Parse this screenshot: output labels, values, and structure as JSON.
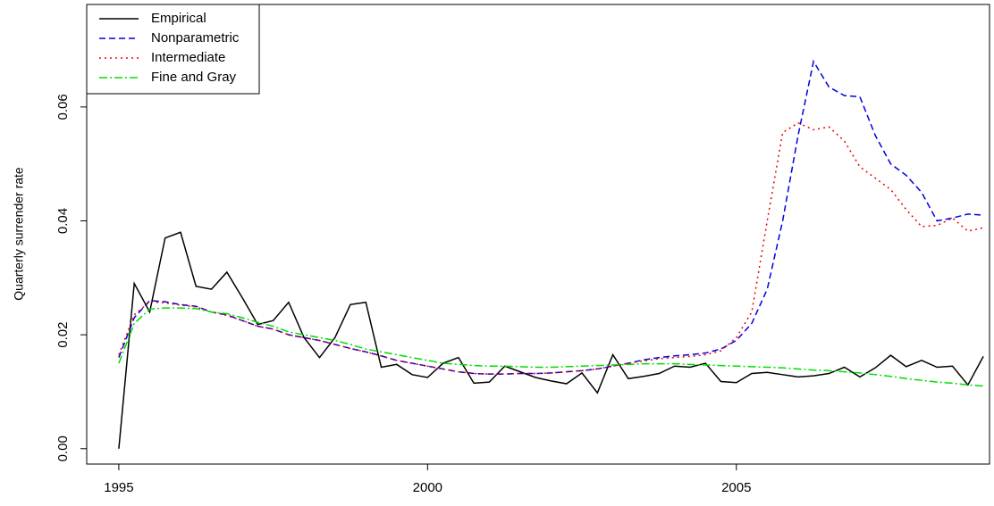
{
  "chart_data": {
    "type": "line",
    "ylabel": "Quarterly surrender rate",
    "x": [
      1995,
      1995.25,
      1995.5,
      1995.75,
      1996,
      1996.25,
      1996.5,
      1996.75,
      1997,
      1997.25,
      1997.5,
      1997.75,
      1998,
      1998.25,
      1998.5,
      1998.75,
      1999,
      1999.25,
      1999.5,
      1999.75,
      2000,
      2000.25,
      2000.5,
      2000.75,
      2001,
      2001.25,
      2001.5,
      2001.75,
      2002,
      2002.25,
      2002.5,
      2002.75,
      2003,
      2003.25,
      2003.5,
      2003.75,
      2004,
      2004.25,
      2004.5,
      2004.75,
      2005,
      2005.25,
      2005.5,
      2005.75,
      2006,
      2006.25,
      2006.5,
      2006.75,
      2007,
      2007.25,
      2007.5,
      2007.75,
      2008,
      2008.25,
      2008.5,
      2008.75,
      2009
    ],
    "series": [
      {
        "name": "Empirical",
        "color": "#000000",
        "dash": "none",
        "values": [
          0.0,
          0.029,
          0.024,
          0.037,
          0.038,
          0.0285,
          0.028,
          0.031,
          0.0265,
          0.0218,
          0.0225,
          0.0257,
          0.0195,
          0.016,
          0.0195,
          0.0253,
          0.0257,
          0.0143,
          0.0148,
          0.013,
          0.0125,
          0.015,
          0.016,
          0.0115,
          0.0117,
          0.0145,
          0.0135,
          0.0125,
          0.0119,
          0.0114,
          0.0133,
          0.0098,
          0.0165,
          0.0123,
          0.0127,
          0.0132,
          0.0145,
          0.0143,
          0.015,
          0.0118,
          0.0116,
          0.0132,
          0.0134,
          0.013,
          0.0126,
          0.0128,
          0.0132,
          0.0143,
          0.0126,
          0.0142,
          0.0164,
          0.0144,
          0.0155,
          0.0143,
          0.0145,
          0.0112,
          0.0162
        ]
      },
      {
        "name": "Nonparametric",
        "color": "#0000dd",
        "dash": "7,4",
        "values": [
          0.016,
          0.023,
          0.026,
          0.0258,
          0.0253,
          0.025,
          0.024,
          0.0235,
          0.0225,
          0.0215,
          0.021,
          0.02,
          0.0195,
          0.019,
          0.0183,
          0.0176,
          0.017,
          0.0163,
          0.0155,
          0.015,
          0.0145,
          0.014,
          0.0135,
          0.0132,
          0.0131,
          0.0131,
          0.0132,
          0.0132,
          0.0133,
          0.0135,
          0.0137,
          0.014,
          0.0145,
          0.015,
          0.0156,
          0.016,
          0.0163,
          0.0165,
          0.0168,
          0.0175,
          0.019,
          0.022,
          0.028,
          0.04,
          0.055,
          0.068,
          0.0635,
          0.062,
          0.0618,
          0.055,
          0.05,
          0.048,
          0.045,
          0.04,
          0.0405,
          0.0412,
          0.041
        ]
      },
      {
        "name": "Intermediate",
        "color": "#ee0000",
        "dash": "2,4",
        "values": [
          0.0165,
          0.0235,
          0.0258,
          0.0256,
          0.0252,
          0.0249,
          0.024,
          0.0234,
          0.0225,
          0.0215,
          0.021,
          0.02,
          0.0195,
          0.019,
          0.0183,
          0.0176,
          0.017,
          0.0163,
          0.0155,
          0.015,
          0.0145,
          0.014,
          0.0135,
          0.0132,
          0.0131,
          0.0131,
          0.0132,
          0.0132,
          0.0133,
          0.0135,
          0.0137,
          0.014,
          0.0145,
          0.015,
          0.0154,
          0.0158,
          0.016,
          0.0162,
          0.0165,
          0.0172,
          0.0195,
          0.024,
          0.04,
          0.0555,
          0.0572,
          0.056,
          0.0565,
          0.054,
          0.0495,
          0.0475,
          0.0455,
          0.042,
          0.039,
          0.0392,
          0.0405,
          0.0382,
          0.0388
        ]
      },
      {
        "name": "Fine and Gray",
        "color": "#00dd00",
        "dash": "9,3,2,3",
        "values": [
          0.015,
          0.022,
          0.0245,
          0.0247,
          0.0247,
          0.0246,
          0.024,
          0.0237,
          0.023,
          0.0222,
          0.0215,
          0.0205,
          0.02,
          0.0195,
          0.019,
          0.0183,
          0.0175,
          0.017,
          0.0165,
          0.016,
          0.0155,
          0.015,
          0.0148,
          0.0146,
          0.0145,
          0.0145,
          0.0144,
          0.0143,
          0.0143,
          0.0144,
          0.0145,
          0.0146,
          0.0147,
          0.0148,
          0.0149,
          0.0149,
          0.0149,
          0.0148,
          0.0147,
          0.0146,
          0.0145,
          0.0144,
          0.0143,
          0.0142,
          0.014,
          0.0138,
          0.0137,
          0.0135,
          0.0133,
          0.013,
          0.0127,
          0.0123,
          0.012,
          0.0117,
          0.0115,
          0.0112,
          0.011
        ]
      }
    ],
    "xlim": [
      1994.48,
      2009.1
    ],
    "ylim": [
      -0.0027,
      0.078
    ],
    "xticks": [
      1995,
      2000,
      2005
    ],
    "yticks": [
      {
        "value": 0,
        "label": "0.00"
      },
      {
        "value": 0.02,
        "label": "0.02"
      },
      {
        "value": 0.04,
        "label": "0.04"
      },
      {
        "value": 0.06,
        "label": "0.06"
      }
    ],
    "legend": "top-left"
  }
}
